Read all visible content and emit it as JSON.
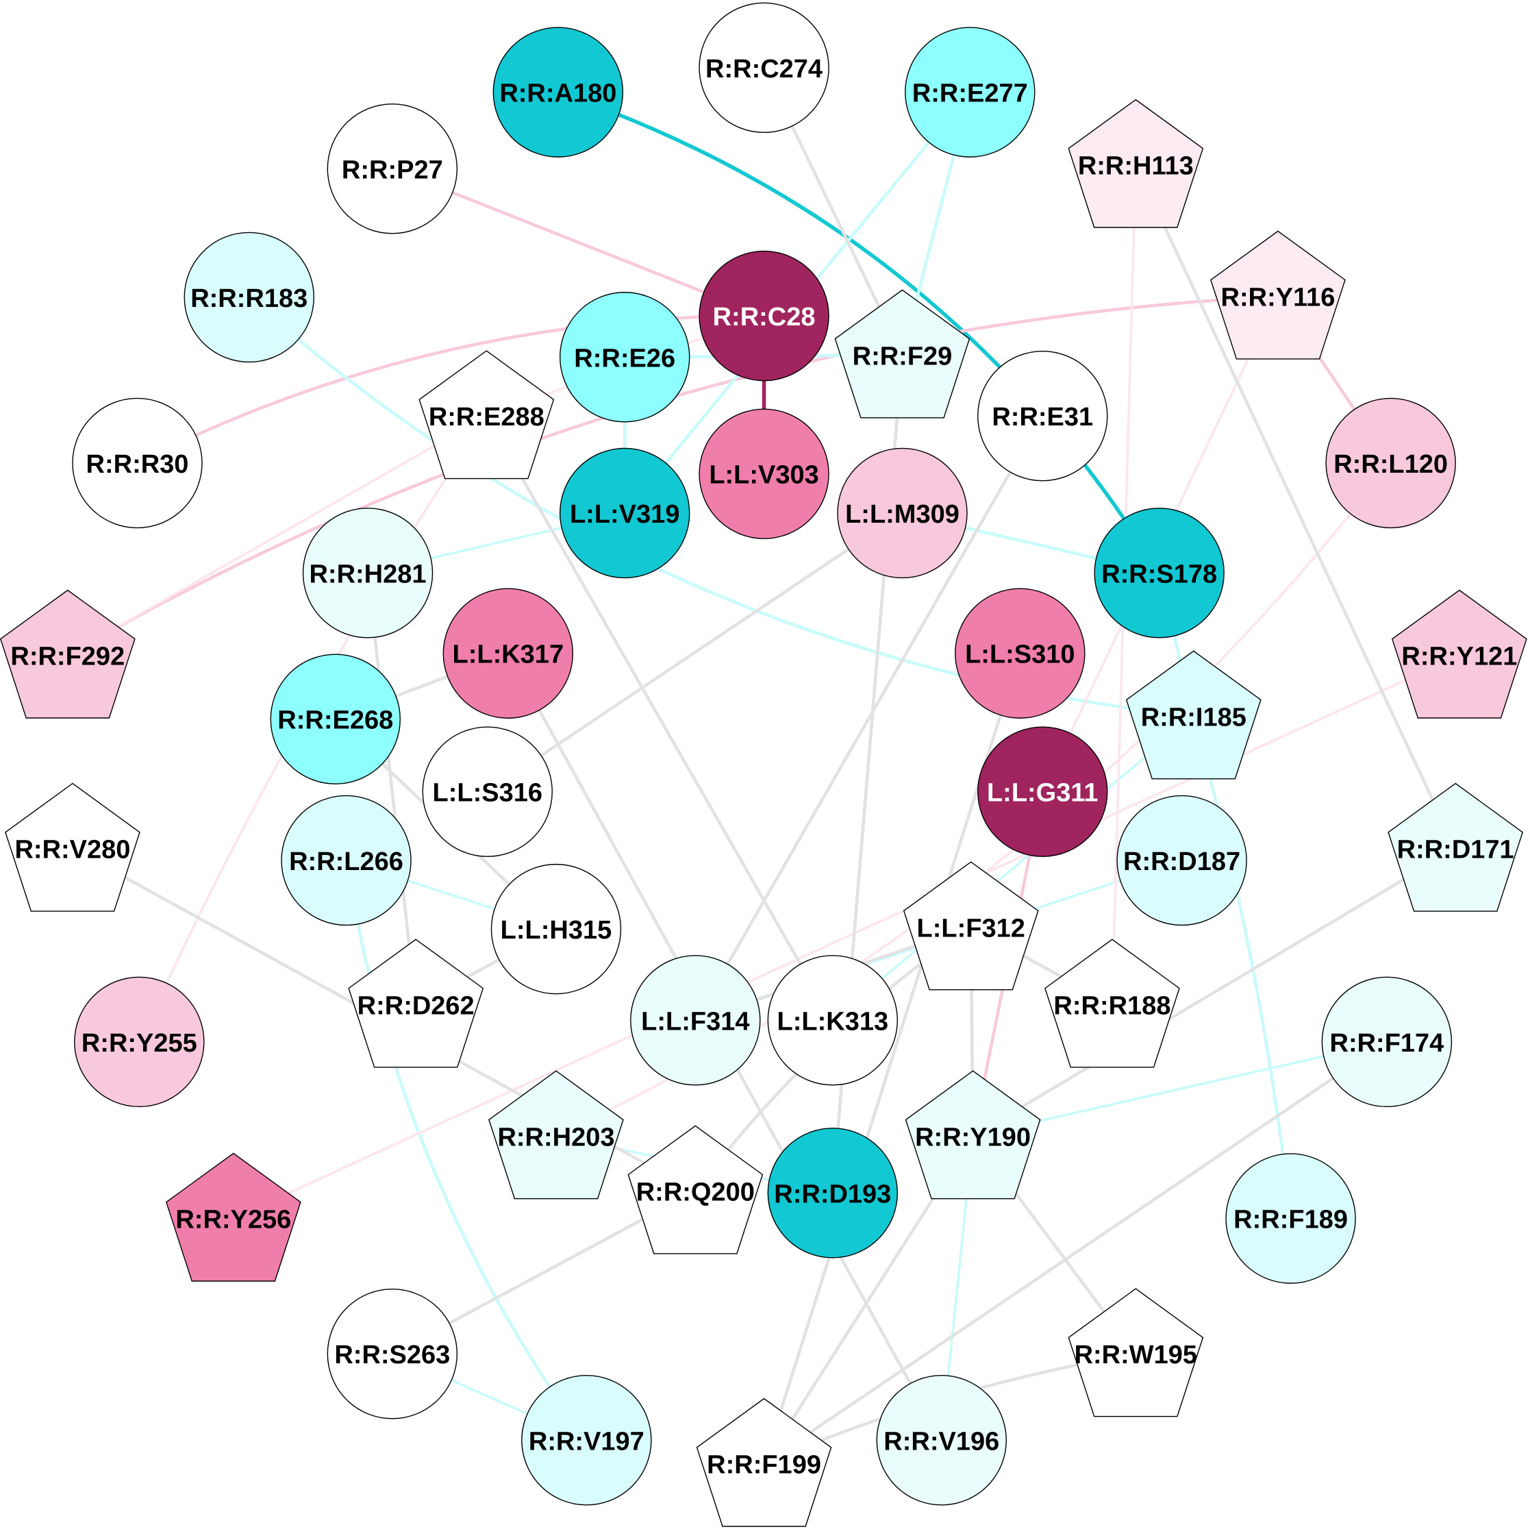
{
  "colors": {
    "white": "#ffffff",
    "cyan_dark": "#12c8d2",
    "cyan": "#8effff",
    "cyan_light": "#d9fdfd",
    "cyan_pale": "#e9fdfd",
    "crimson": "#a0245e",
    "pink_dark": "#f07eab",
    "pink": "#f8c8dc",
    "pink_pale": "#fcebf2",
    "edge_gray": "#e2e2e2",
    "edge_cyan": "#c9fbfb",
    "edge_pink": "#f9c9dc",
    "edge_pink_light": "#fde5ee"
  },
  "nodes": [
    {
      "id": "A180",
      "label": "R:R:A180",
      "shape": "circle",
      "fill": "cyan_dark",
      "text": "black"
    },
    {
      "id": "C274",
      "label": "R:R:C274",
      "shape": "circle",
      "fill": "white",
      "text": "black"
    },
    {
      "id": "E277",
      "label": "R:R:E277",
      "shape": "circle",
      "fill": "cyan",
      "text": "black"
    },
    {
      "id": "P27",
      "label": "R:R:P27",
      "shape": "circle",
      "fill": "white",
      "text": "black"
    },
    {
      "id": "H113",
      "label": "R:R:H113",
      "shape": "pentagon",
      "fill": "pink_pale",
      "text": "black"
    },
    {
      "id": "R183",
      "label": "R:R:R183",
      "shape": "circle",
      "fill": "cyan_light",
      "text": "black"
    },
    {
      "id": "C28",
      "label": "R:R:C28",
      "shape": "circle",
      "fill": "crimson",
      "text": "white"
    },
    {
      "id": "Y116",
      "label": "R:R:Y116",
      "shape": "pentagon",
      "fill": "pink_pale",
      "text": "black"
    },
    {
      "id": "E26",
      "label": "R:R:E26",
      "shape": "circle",
      "fill": "cyan",
      "text": "black"
    },
    {
      "id": "F29",
      "label": "R:R:F29",
      "shape": "pentagon",
      "fill": "cyan_pale",
      "text": "black"
    },
    {
      "id": "E288",
      "label": "R:R:E288",
      "shape": "pentagon",
      "fill": "white",
      "text": "black"
    },
    {
      "id": "E31",
      "label": "R:R:E31",
      "shape": "circle",
      "fill": "white",
      "text": "black"
    },
    {
      "id": "R30",
      "label": "R:R:R30",
      "shape": "circle",
      "fill": "white",
      "text": "black"
    },
    {
      "id": "V303",
      "label": "L:L:V303",
      "shape": "circle",
      "fill": "pink_dark",
      "text": "black"
    },
    {
      "id": "L120",
      "label": "R:R:L120",
      "shape": "circle",
      "fill": "pink",
      "text": "black"
    },
    {
      "id": "V319",
      "label": "L:L:V319",
      "shape": "circle",
      "fill": "cyan_dark",
      "text": "black"
    },
    {
      "id": "M309",
      "label": "L:L:M309",
      "shape": "circle",
      "fill": "pink",
      "text": "black"
    },
    {
      "id": "H281",
      "label": "R:R:H281",
      "shape": "circle",
      "fill": "cyan_pale",
      "text": "black"
    },
    {
      "id": "S178",
      "label": "R:R:S178",
      "shape": "circle",
      "fill": "cyan_dark",
      "text": "black"
    },
    {
      "id": "F292",
      "label": "R:R:F292",
      "shape": "pentagon",
      "fill": "pink",
      "text": "black"
    },
    {
      "id": "K317",
      "label": "L:L:K317",
      "shape": "circle",
      "fill": "pink_dark",
      "text": "black"
    },
    {
      "id": "S310",
      "label": "L:L:S310",
      "shape": "circle",
      "fill": "pink_dark",
      "text": "black"
    },
    {
      "id": "Y121",
      "label": "R:R:Y121",
      "shape": "pentagon",
      "fill": "pink",
      "text": "black"
    },
    {
      "id": "E268",
      "label": "R:R:E268",
      "shape": "circle",
      "fill": "cyan",
      "text": "black"
    },
    {
      "id": "I185",
      "label": "R:R:I185",
      "shape": "pentagon",
      "fill": "cyan_light",
      "text": "black"
    },
    {
      "id": "S316",
      "label": "L:L:S316",
      "shape": "circle",
      "fill": "white",
      "text": "black"
    },
    {
      "id": "G311",
      "label": "L:L:G311",
      "shape": "circle",
      "fill": "crimson",
      "text": "white"
    },
    {
      "id": "V280",
      "label": "R:R:V280",
      "shape": "pentagon",
      "fill": "white",
      "text": "black"
    },
    {
      "id": "L266",
      "label": "R:R:L266",
      "shape": "circle",
      "fill": "cyan_light",
      "text": "black"
    },
    {
      "id": "D187",
      "label": "R:R:D187",
      "shape": "circle",
      "fill": "cyan_light",
      "text": "black"
    },
    {
      "id": "D171",
      "label": "R:R:D171",
      "shape": "pentagon",
      "fill": "cyan_pale",
      "text": "black"
    },
    {
      "id": "H315",
      "label": "L:L:H315",
      "shape": "circle",
      "fill": "white",
      "text": "black"
    },
    {
      "id": "F312",
      "label": "L:L:F312",
      "shape": "pentagon",
      "fill": "white",
      "text": "black"
    },
    {
      "id": "D262",
      "label": "R:R:D262",
      "shape": "pentagon",
      "fill": "white",
      "text": "black"
    },
    {
      "id": "R188",
      "label": "R:R:R188",
      "shape": "pentagon",
      "fill": "white",
      "text": "black"
    },
    {
      "id": "F314",
      "label": "L:L:F314",
      "shape": "circle",
      "fill": "cyan_pale",
      "text": "black"
    },
    {
      "id": "K313",
      "label": "L:L:K313",
      "shape": "circle",
      "fill": "white",
      "text": "black"
    },
    {
      "id": "Y255",
      "label": "R:R:Y255",
      "shape": "circle",
      "fill": "pink",
      "text": "black"
    },
    {
      "id": "F174",
      "label": "R:R:F174",
      "shape": "circle",
      "fill": "cyan_pale",
      "text": "black"
    },
    {
      "id": "H203",
      "label": "R:R:H203",
      "shape": "pentagon",
      "fill": "cyan_pale",
      "text": "black"
    },
    {
      "id": "Y190",
      "label": "R:R:Y190",
      "shape": "pentagon",
      "fill": "cyan_pale",
      "text": "black"
    },
    {
      "id": "Y256",
      "label": "R:R:Y256",
      "shape": "pentagon",
      "fill": "pink_dark",
      "text": "black"
    },
    {
      "id": "Q200",
      "label": "R:R:Q200",
      "shape": "pentagon",
      "fill": "white",
      "text": "black"
    },
    {
      "id": "D193",
      "label": "R:R:D193",
      "shape": "circle",
      "fill": "cyan_dark",
      "text": "black"
    },
    {
      "id": "F189",
      "label": "R:R:F189",
      "shape": "circle",
      "fill": "cyan_light",
      "text": "black"
    },
    {
      "id": "S263",
      "label": "R:R:S263",
      "shape": "circle",
      "fill": "white",
      "text": "black"
    },
    {
      "id": "W195",
      "label": "R:R:W195",
      "shape": "pentagon",
      "fill": "white",
      "text": "black"
    },
    {
      "id": "V197",
      "label": "R:R:V197",
      "shape": "circle",
      "fill": "cyan_light",
      "text": "black"
    },
    {
      "id": "F199",
      "label": "R:R:F199",
      "shape": "pentagon",
      "fill": "white",
      "text": "black"
    },
    {
      "id": "V196",
      "label": "R:R:V196",
      "shape": "circle",
      "fill": "cyan_pale",
      "text": "black"
    }
  ],
  "edges": [
    {
      "from": "A180",
      "to": "S178",
      "color": "cyan_dark",
      "weight": "heavy"
    },
    {
      "from": "C28",
      "to": "V303",
      "color": "crimson",
      "weight": "heavy"
    },
    {
      "from": "P27",
      "to": "C28",
      "color": "edge_pink",
      "weight": "medium"
    },
    {
      "from": "R30",
      "to": "C28",
      "color": "edge_pink",
      "weight": "medium"
    },
    {
      "from": "F292",
      "to": "Y116",
      "color": "edge_pink",
      "weight": "medium"
    },
    {
      "from": "Y116",
      "to": "L120",
      "color": "edge_pink",
      "weight": "medium"
    },
    {
      "from": "G311",
      "to": "Y190",
      "color": "edge_pink",
      "weight": "medium"
    },
    {
      "from": "E277",
      "to": "F29",
      "color": "edge_cyan",
      "weight": "medium"
    },
    {
      "from": "E277",
      "to": "V319",
      "color": "edge_cyan",
      "weight": "medium"
    },
    {
      "from": "R183",
      "to": "I185",
      "color": "edge_cyan",
      "weight": "medium"
    },
    {
      "from": "E26",
      "to": "F29",
      "color": "edge_cyan",
      "weight": "medium"
    },
    {
      "from": "E26",
      "to": "V319",
      "color": "edge_cyan",
      "weight": "medium"
    },
    {
      "from": "M309",
      "to": "S178",
      "color": "edge_cyan",
      "weight": "medium"
    },
    {
      "from": "S178",
      "to": "I185",
      "color": "edge_cyan",
      "weight": "medium"
    },
    {
      "from": "I185",
      "to": "F189",
      "color": "edge_cyan",
      "weight": "medium"
    },
    {
      "from": "L266",
      "to": "V197",
      "color": "edge_cyan",
      "weight": "medium"
    },
    {
      "from": "L266",
      "to": "H315",
      "color": "edge_cyan",
      "weight": "light"
    },
    {
      "from": "H281",
      "to": "V319",
      "color": "edge_cyan",
      "weight": "light"
    },
    {
      "from": "F314",
      "to": "D187",
      "color": "edge_cyan",
      "weight": "light"
    },
    {
      "from": "K313",
      "to": "I185",
      "color": "edge_cyan",
      "weight": "light"
    },
    {
      "from": "Y190",
      "to": "F174",
      "color": "edge_cyan",
      "weight": "light"
    },
    {
      "from": "Y190",
      "to": "V196",
      "color": "edge_cyan",
      "weight": "light"
    },
    {
      "from": "H203",
      "to": "D193",
      "color": "edge_cyan",
      "weight": "light"
    },
    {
      "from": "S263",
      "to": "V197",
      "color": "edge_cyan",
      "weight": "light"
    },
    {
      "from": "E288",
      "to": "F292",
      "color": "edge_pink_light",
      "weight": "light"
    },
    {
      "from": "E288",
      "to": "Y255",
      "color": "edge_pink_light",
      "weight": "light"
    },
    {
      "from": "E288",
      "to": "C28",
      "color": "edge_pink_light",
      "weight": "light"
    },
    {
      "from": "H113",
      "to": "R188",
      "color": "edge_pink_light",
      "weight": "light"
    },
    {
      "from": "Y116",
      "to": "G311",
      "color": "edge_pink_light",
      "weight": "light"
    },
    {
      "from": "L120",
      "to": "H203",
      "color": "edge_pink_light",
      "weight": "light"
    },
    {
      "from": "Y121",
      "to": "Y256",
      "color": "edge_pink_light",
      "weight": "light"
    },
    {
      "from": "C274",
      "to": "F29",
      "color": "edge_gray",
      "weight": "medium"
    },
    {
      "from": "F29",
      "to": "D193",
      "color": "edge_gray",
      "weight": "medium"
    },
    {
      "from": "H113",
      "to": "D171",
      "color": "edge_gray",
      "weight": "medium"
    },
    {
      "from": "E288",
      "to": "K313",
      "color": "edge_gray",
      "weight": "medium"
    },
    {
      "from": "E31",
      "to": "F314",
      "color": "edge_gray",
      "weight": "medium"
    },
    {
      "from": "M309",
      "to": "S316",
      "color": "edge_gray",
      "weight": "medium"
    },
    {
      "from": "H281",
      "to": "D262",
      "color": "edge_gray",
      "weight": "medium"
    },
    {
      "from": "E268",
      "to": "K317",
      "color": "edge_gray",
      "weight": "medium"
    },
    {
      "from": "E268",
      "to": "H315",
      "color": "edge_gray",
      "weight": "medium"
    },
    {
      "from": "K317",
      "to": "V196",
      "color": "edge_gray",
      "weight": "medium"
    },
    {
      "from": "S310",
      "to": "F199",
      "color": "edge_gray",
      "weight": "medium"
    },
    {
      "from": "V280",
      "to": "Q200",
      "color": "edge_gray",
      "weight": "medium"
    },
    {
      "from": "D171",
      "to": "Y190",
      "color": "edge_gray",
      "weight": "medium"
    },
    {
      "from": "H315",
      "to": "D262",
      "color": "edge_gray",
      "weight": "medium"
    },
    {
      "from": "F312",
      "to": "R188",
      "color": "edge_gray",
      "weight": "medium"
    },
    {
      "from": "F312",
      "to": "Y190",
      "color": "edge_gray",
      "weight": "medium"
    },
    {
      "from": "F312",
      "to": "Q200",
      "color": "edge_gray",
      "weight": "medium"
    },
    {
      "from": "F312",
      "to": "F314",
      "color": "edge_gray",
      "weight": "medium"
    },
    {
      "from": "Y190",
      "to": "W195",
      "color": "edge_gray",
      "weight": "medium"
    },
    {
      "from": "Y190",
      "to": "F199",
      "color": "edge_gray",
      "weight": "medium"
    },
    {
      "from": "Q200",
      "to": "S263",
      "color": "edge_gray",
      "weight": "medium"
    },
    {
      "from": "F174",
      "to": "F199",
      "color": "edge_gray",
      "weight": "medium"
    },
    {
      "from": "W195",
      "to": "F199",
      "color": "edge_gray",
      "weight": "medium"
    }
  ]
}
